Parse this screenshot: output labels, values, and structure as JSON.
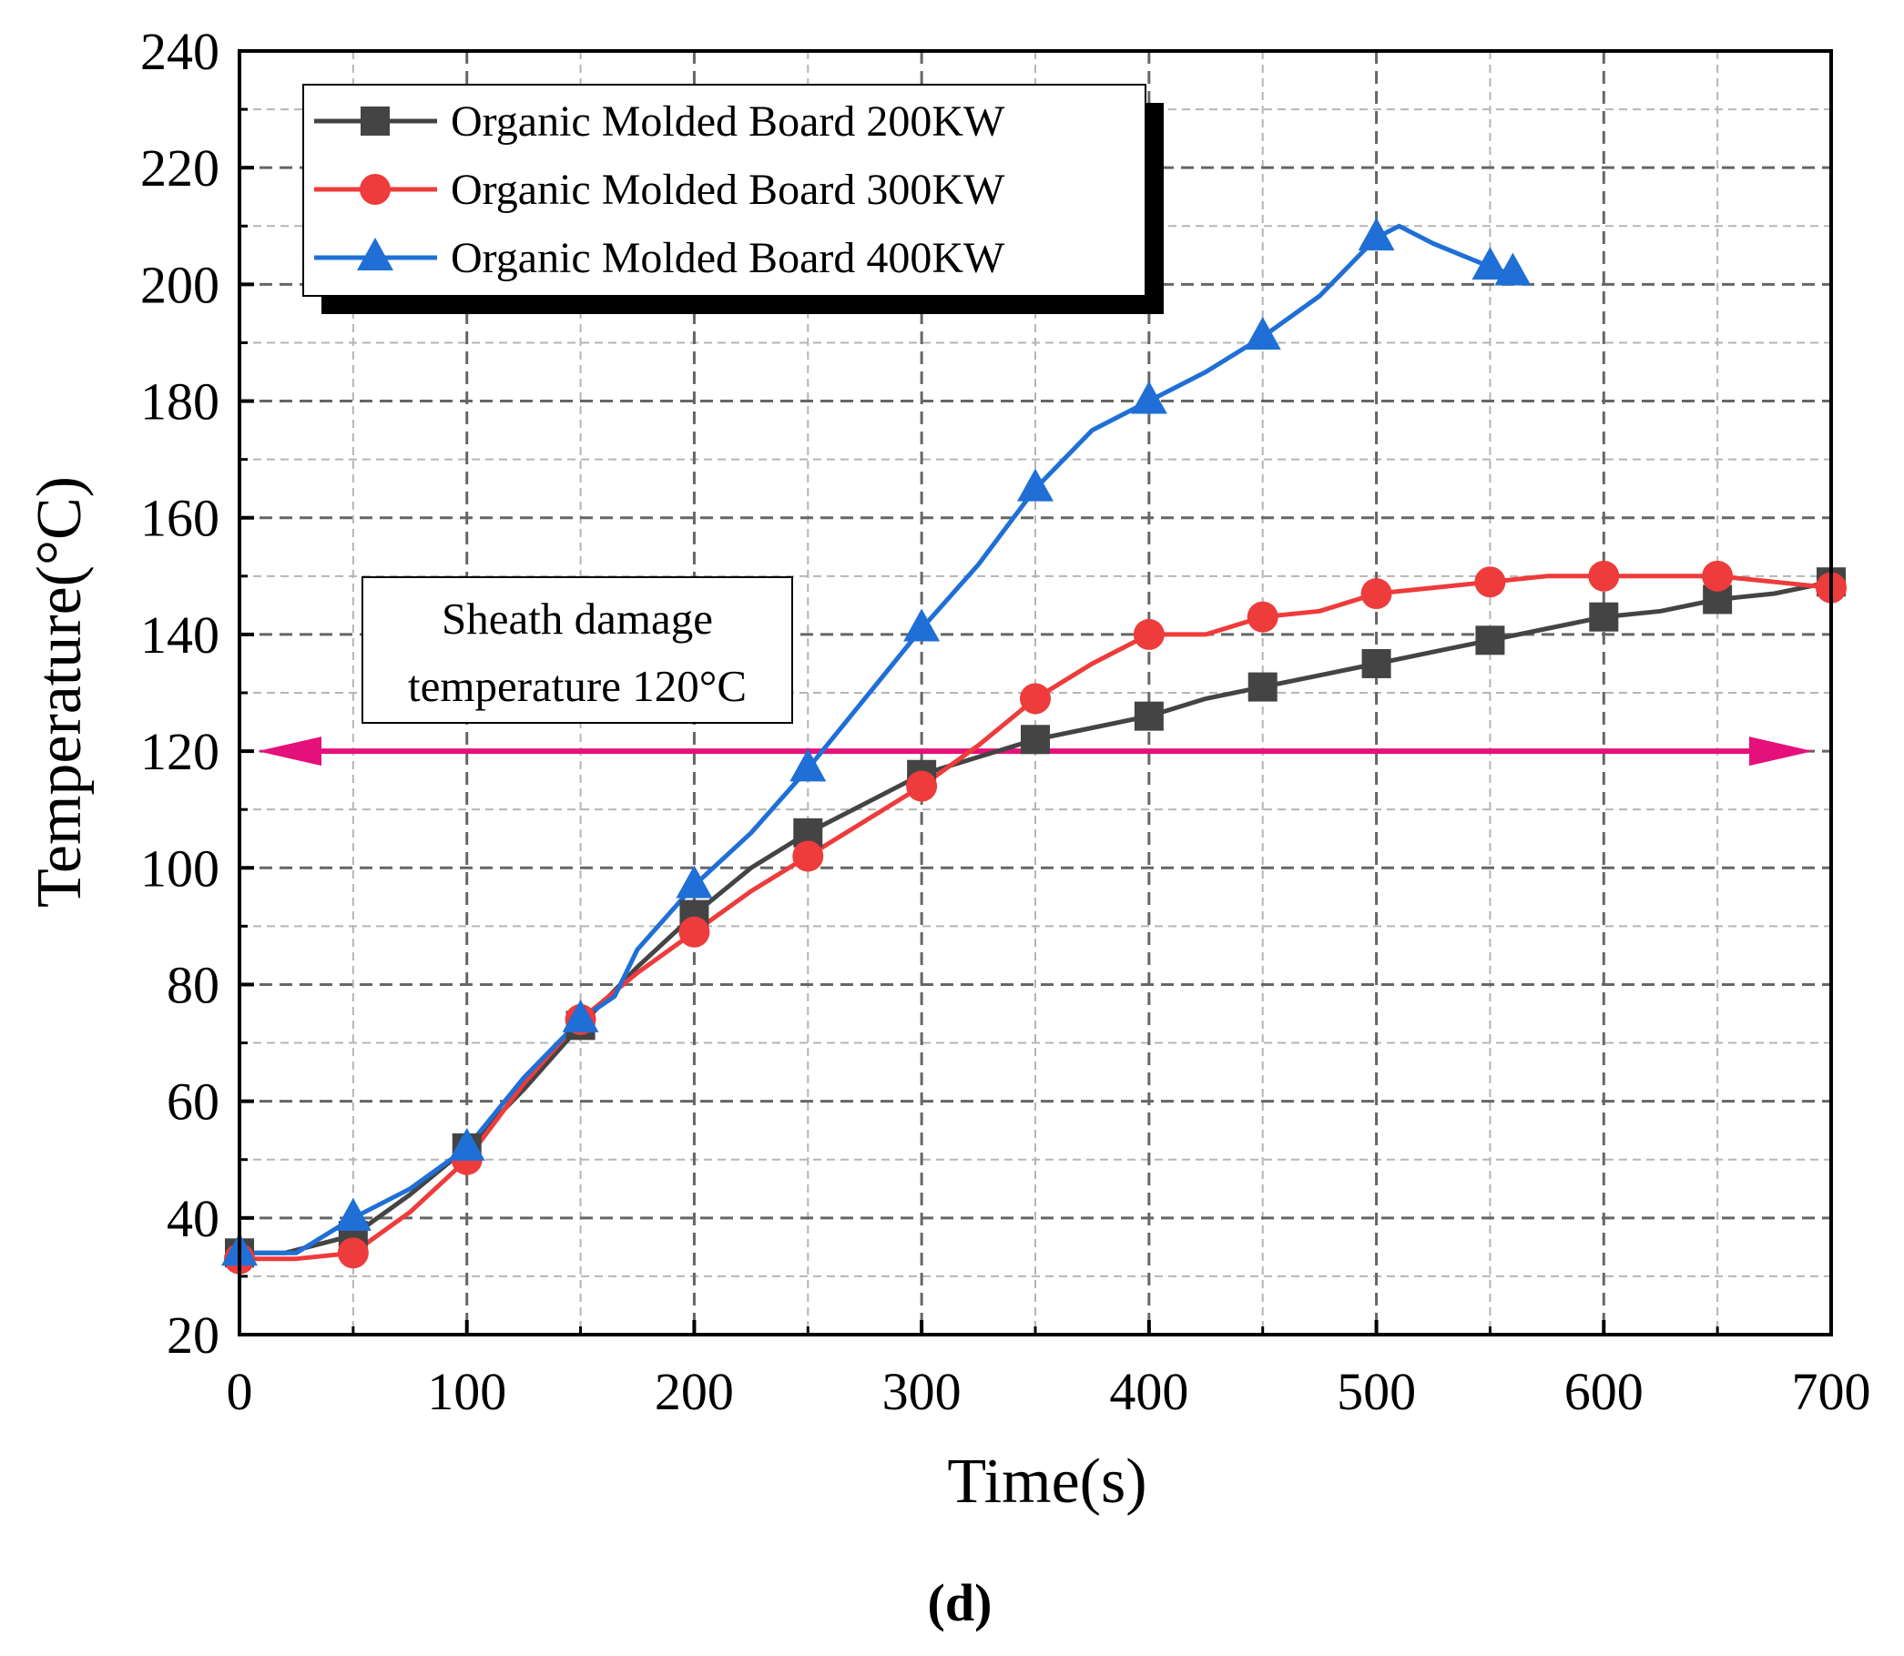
{
  "chart_data": {
    "type": "line",
    "title": "",
    "xlabel": "Time(s)",
    "ylabel": "Temperature(°C)",
    "xlim": [
      0,
      700
    ],
    "ylim": [
      20,
      240
    ],
    "xticks": [
      0,
      100,
      200,
      300,
      400,
      500,
      600,
      700
    ],
    "yticks": [
      20,
      40,
      60,
      80,
      100,
      120,
      140,
      160,
      180,
      200,
      220,
      240
    ],
    "grid": true,
    "legend_position": "top-left",
    "series": [
      {
        "name": "Organic Molded Board 200KW",
        "color": "#444444",
        "marker": "square",
        "x": [
          0,
          20,
          50,
          75,
          100,
          125,
          150,
          175,
          200,
          225,
          250,
          275,
          300,
          325,
          350,
          375,
          400,
          425,
          450,
          475,
          500,
          525,
          550,
          575,
          600,
          625,
          650,
          675,
          700
        ],
        "y": [
          34,
          34,
          37,
          44,
          52,
          62,
          73,
          83,
          92,
          100,
          106,
          111,
          116,
          119,
          122,
          124,
          126,
          129,
          131,
          133,
          135,
          137,
          139,
          141,
          143,
          144,
          146,
          147,
          149
        ],
        "marker_x": [
          0,
          50,
          100,
          150,
          200,
          250,
          300,
          350,
          400,
          450,
          500,
          550,
          600,
          650,
          700
        ],
        "marker_y": [
          34,
          37,
          52,
          73,
          92,
          106,
          116,
          122,
          126,
          131,
          135,
          139,
          143,
          146,
          149
        ]
      },
      {
        "name": "Organic Molded Board 300KW",
        "color": "#ee3b3b",
        "marker": "circle",
        "x": [
          0,
          25,
          50,
          75,
          100,
          125,
          150,
          175,
          200,
          225,
          250,
          275,
          300,
          325,
          350,
          375,
          400,
          425,
          450,
          475,
          500,
          525,
          550,
          575,
          600,
          625,
          650,
          675,
          700
        ],
        "y": [
          33,
          33,
          34,
          41,
          50,
          63,
          74,
          82,
          89,
          96,
          102,
          108,
          114,
          121,
          129,
          135,
          140,
          140,
          143,
          144,
          147,
          148,
          149,
          150,
          150,
          150,
          150,
          149,
          148
        ],
        "marker_x": [
          0,
          50,
          100,
          150,
          200,
          250,
          300,
          350,
          400,
          450,
          500,
          550,
          600,
          650,
          700
        ],
        "marker_y": [
          33,
          34,
          50,
          74,
          89,
          102,
          114,
          129,
          140,
          143,
          147,
          149,
          150,
          150,
          148
        ]
      },
      {
        "name": "Organic Molded Board 400KW",
        "color": "#1f6fd6",
        "marker": "triangle",
        "x": [
          0,
          25,
          50,
          75,
          100,
          125,
          150,
          165,
          175,
          200,
          225,
          250,
          275,
          300,
          325,
          350,
          375,
          400,
          425,
          450,
          475,
          500,
          510,
          525,
          550,
          565
        ],
        "y": [
          34,
          34,
          40,
          45,
          52,
          64,
          74,
          78,
          86,
          97,
          106,
          117,
          129,
          141,
          152,
          165,
          175,
          180,
          185,
          191,
          198,
          208,
          210,
          207,
          203,
          201
        ],
        "marker_x": [
          0,
          50,
          100,
          150,
          200,
          250,
          300,
          350,
          400,
          450,
          500,
          550,
          560
        ],
        "marker_y": [
          34,
          40,
          52,
          74,
          97,
          117,
          141,
          165,
          180,
          191,
          208,
          203,
          202
        ]
      }
    ],
    "reference_line": {
      "y": 120,
      "x_range": [
        0,
        700
      ],
      "color": "#e5117a",
      "label_lines": [
        "Sheath damage",
        "temperature 120°C"
      ]
    },
    "caption": "(d)"
  }
}
